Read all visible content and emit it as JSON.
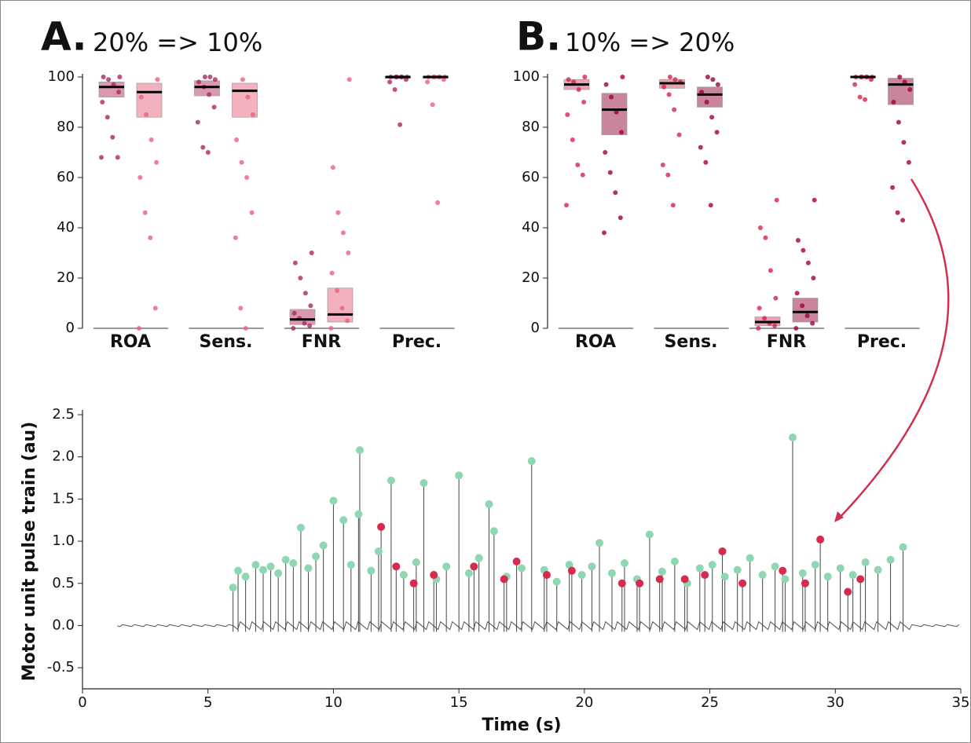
{
  "chart_data": [
    {
      "type": "box",
      "panel": "A.",
      "title": "20% => 10%",
      "categories": [
        "ROA",
        "Sens.",
        "FNR",
        "Prec."
      ],
      "ylim": [
        0,
        100
      ],
      "yticks": [
        0,
        20,
        40,
        60,
        80,
        100
      ],
      "series": [
        {
          "color": "#a8285f",
          "box_color": "#d89ab0",
          "q1": [
            92,
            92.5,
            1.5,
            99.5
          ],
          "median": [
            96,
            96,
            3.5,
            100
          ],
          "q3": [
            98,
            98.5,
            7.5,
            100
          ],
          "points": [
            [
              68,
              68,
              76,
              84,
              90,
              94,
              97,
              99,
              100,
              100
            ],
            [
              70,
              72,
              82,
              88,
              93,
              96,
              98,
              99,
              100,
              100
            ],
            [
              0,
              1,
              2,
              4,
              6,
              9,
              14,
              20,
              26,
              30
            ],
            [
              81,
              95,
              98,
              99,
              100,
              100,
              100,
              100,
              100,
              100
            ]
          ]
        },
        {
          "color": "#e8607d",
          "box_color": "#f3b0bf",
          "q1": [
            84,
            84,
            2.5,
            99.5
          ],
          "median": [
            94,
            94.5,
            5.5,
            100
          ],
          "q3": [
            97.5,
            97.5,
            16,
            100
          ],
          "points": [
            [
              0,
              8,
              36,
              46,
              60,
              66,
              75,
              85,
              92,
              99
            ],
            [
              0,
              8,
              36,
              46,
              60,
              66,
              75,
              85,
              92,
              99
            ],
            [
              0,
              3,
              8,
              15,
              22,
              30,
              38,
              46,
              64,
              99
            ],
            [
              50,
              89,
              98,
              99,
              100,
              100,
              100,
              100,
              100,
              100
            ]
          ]
        }
      ]
    },
    {
      "type": "box",
      "panel": "B.",
      "title": "10% => 20%",
      "categories": [
        "ROA",
        "Sens.",
        "FNR",
        "Prec."
      ],
      "ylim": [
        0,
        100
      ],
      "yticks": [
        0,
        20,
        40,
        60,
        80,
        100
      ],
      "series": [
        {
          "color": "#d6244b",
          "box_color": "#e8a3b2",
          "q1": [
            95,
            95.5,
            1,
            100
          ],
          "median": [
            97,
            97.5,
            2.5,
            100
          ],
          "q3": [
            99,
            99,
            4.5,
            100
          ],
          "points": [
            [
              49,
              61,
              65,
              75,
              85,
              90,
              95,
              98,
              99,
              100
            ],
            [
              49,
              61,
              65,
              77,
              87,
              93,
              96,
              98,
              99,
              100
            ],
            [
              0,
              1,
              2,
              4,
              8,
              12,
              23,
              36,
              40,
              51
            ],
            [
              91,
              92,
              97,
              99,
              100,
              100,
              100,
              100,
              100,
              100
            ]
          ]
        },
        {
          "color": "#a0003e",
          "box_color": "#c9849e",
          "q1": [
            77,
            88,
            2.5,
            89
          ],
          "median": [
            87,
            93,
            6.5,
            97
          ],
          "q3": [
            93.5,
            96,
            12,
            99.5
          ],
          "points": [
            [
              38,
              44,
              54,
              62,
              70,
              78,
              86,
              92,
              97,
              100
            ],
            [
              49,
              66,
              72,
              78,
              84,
              90,
              94,
              97,
              99,
              100
            ],
            [
              0,
              2,
              5,
              9,
              14,
              20,
              26,
              31,
              35,
              51
            ],
            [
              43,
              46,
              56,
              66,
              74,
              82,
              90,
              95,
              98,
              100
            ]
          ]
        }
      ]
    },
    {
      "type": "stem",
      "xlabel": "Time (s)",
      "ylabel": "Motor unit pulse train (au)",
      "xlim": [
        0,
        35
      ],
      "xticks": [
        0,
        5,
        10,
        15,
        20,
        25,
        30,
        35
      ],
      "ylim": [
        -0.75,
        2.5
      ],
      "yticks": [
        -0.5,
        {
          "value": 0,
          "label": "0.0"
        },
        0.5,
        {
          "value": 1,
          "label": "1.0"
        },
        1.5,
        {
          "value": 2,
          "label": "2.0"
        },
        2.5
      ],
      "series": [
        {
          "color": "#8fd6b2",
          "x": [
            6.0,
            6.2,
            6.5,
            6.9,
            7.2,
            7.5,
            7.8,
            8.1,
            8.4,
            8.7,
            9.0,
            9.3,
            9.6,
            10.0,
            10.4,
            10.7,
            11.0,
            11.05,
            11.5,
            11.8,
            12.3,
            12.8,
            13.3,
            13.6,
            14.1,
            14.5,
            15.0,
            15.4,
            15.8,
            16.2,
            16.4,
            16.9,
            17.5,
            17.9,
            18.4,
            18.9,
            19.4,
            19.9,
            20.3,
            20.6,
            21.1,
            21.6,
            22.1,
            22.6,
            23.1,
            23.6,
            24.1,
            24.6,
            25.1,
            25.6,
            26.1,
            26.6,
            27.1,
            27.6,
            28.0,
            28.3,
            28.7,
            29.2,
            29.7,
            30.2,
            30.7,
            31.2,
            31.7,
            32.2,
            32.7
          ],
          "values": [
            0.45,
            0.65,
            0.58,
            0.72,
            0.66,
            0.7,
            0.62,
            0.78,
            0.74,
            1.16,
            0.68,
            0.82,
            0.95,
            1.48,
            1.25,
            0.72,
            1.32,
            2.08,
            0.65,
            0.88,
            1.72,
            0.6,
            0.75,
            1.69,
            0.55,
            0.7,
            1.78,
            0.62,
            0.8,
            1.44,
            1.12,
            0.58,
            0.68,
            1.95,
            0.66,
            0.52,
            0.72,
            0.6,
            0.7,
            0.98,
            0.62,
            0.74,
            0.55,
            1.08,
            0.64,
            0.76,
            0.5,
            0.68,
            0.72,
            0.58,
            0.66,
            0.8,
            0.6,
            0.7,
            0.55,
            2.23,
            0.62,
            0.72,
            0.58,
            0.68,
            0.6,
            0.75,
            0.66,
            0.78,
            0.93
          ]
        },
        {
          "color": "#d62a4e",
          "x": [
            11.9,
            12.5,
            13.2,
            14.0,
            15.6,
            16.8,
            17.3,
            18.5,
            19.5,
            21.5,
            22.2,
            23.0,
            24.0,
            24.8,
            25.5,
            26.3,
            27.9,
            28.8,
            29.4,
            30.5,
            31.0
          ],
          "values": [
            1.17,
            0.7,
            0.5,
            0.6,
            0.7,
            0.55,
            0.76,
            0.6,
            0.65,
            0.5,
            0.5,
            0.55,
            0.55,
            0.6,
            0.88,
            0.5,
            0.65,
            0.5,
            1.02,
            0.4,
            0.55
          ]
        }
      ]
    }
  ]
}
